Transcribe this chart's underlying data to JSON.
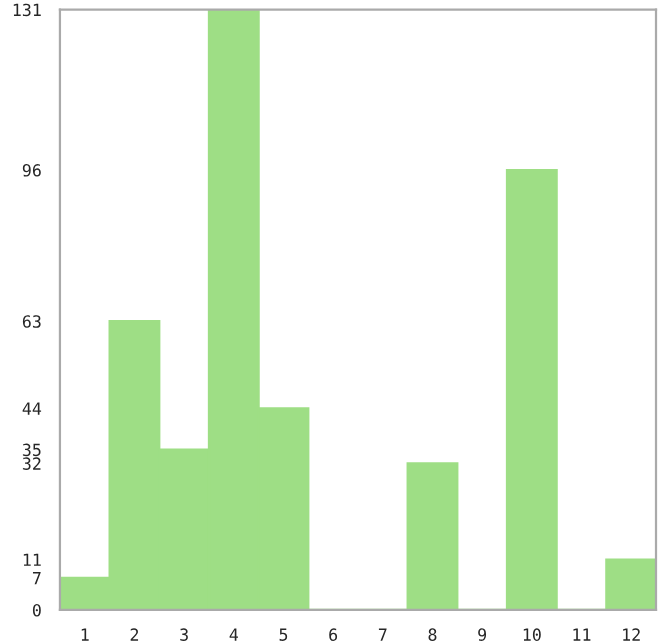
{
  "chart_data": {
    "type": "bar",
    "categories": [
      "1",
      "2",
      "3",
      "4",
      "5",
      "6",
      "7",
      "8",
      "9",
      "10",
      "11",
      "12"
    ],
    "values": [
      7,
      63,
      35,
      131,
      44,
      0,
      0,
      32,
      0,
      96,
      0,
      11
    ],
    "color": "#9ede85",
    "ylim": [
      0,
      131
    ],
    "yticks": [
      0,
      7,
      11,
      32,
      35,
      44,
      63,
      96,
      131
    ],
    "grid": false,
    "legend": false
  }
}
